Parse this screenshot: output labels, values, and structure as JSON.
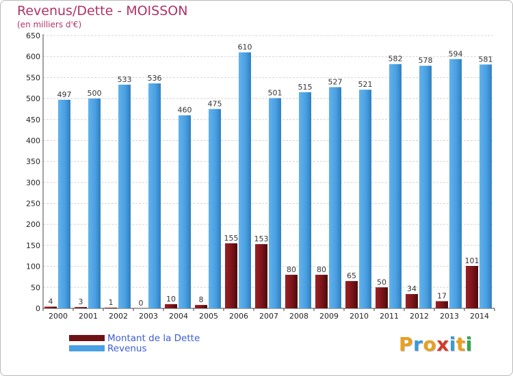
{
  "header": {
    "title": "Revenus/Dette - MOISSON",
    "subtitle": "(en milliers d'€)"
  },
  "chart_data": {
    "type": "bar",
    "title": "Revenus/Dette - MOISSON",
    "ylabel": "(en milliers d'€)",
    "xlabel": "",
    "ylim": [
      0,
      650
    ],
    "ytick_step": 50,
    "grid": true,
    "categories": [
      "2000",
      "2001",
      "2002",
      "2003",
      "2004",
      "2005",
      "2006",
      "2007",
      "2008",
      "2009",
      "2010",
      "2011",
      "2012",
      "2013",
      "2014"
    ],
    "series": [
      {
        "name": "Montant de la Dette",
        "color": "#7a1418",
        "values": [
          4,
          3,
          1,
          0,
          10,
          8,
          155,
          153,
          80,
          80,
          65,
          50,
          34,
          17,
          101
        ]
      },
      {
        "name": "Revenus",
        "color": "#4aa0e2",
        "values": [
          497,
          500,
          533,
          536,
          460,
          475,
          610,
          501,
          515,
          527,
          521,
          582,
          578,
          594,
          581
        ]
      }
    ]
  },
  "legend": {
    "items": [
      {
        "label": "Montant de la Dette",
        "color": "#7a1418"
      },
      {
        "label": "Revenus",
        "color": "#4aa0e2"
      }
    ]
  },
  "logo": {
    "text": "Proxiti",
    "letters": [
      "P",
      "r",
      "o",
      "x",
      "i",
      "t",
      "i"
    ],
    "colors": [
      "#e8a020",
      "#3a9ad8",
      "#e8a020",
      "#d23a2a",
      "#3a9ad8",
      "#e8a020",
      "#2ea84a"
    ]
  }
}
